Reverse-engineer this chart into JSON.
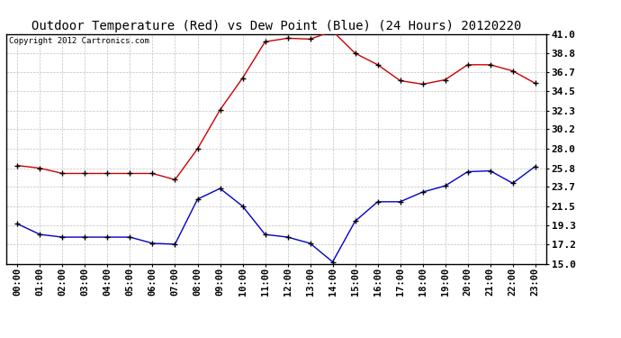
{
  "title": "Outdoor Temperature (Red) vs Dew Point (Blue) (24 Hours) 20120220",
  "copyright_text": "Copyright 2012 Cartronics.com",
  "x_labels": [
    "00:00",
    "01:00",
    "02:00",
    "03:00",
    "04:00",
    "05:00",
    "06:00",
    "07:00",
    "08:00",
    "09:00",
    "10:00",
    "11:00",
    "12:00",
    "13:00",
    "14:00",
    "15:00",
    "16:00",
    "17:00",
    "18:00",
    "19:00",
    "20:00",
    "21:00",
    "22:00",
    "23:00"
  ],
  "temp_red": [
    26.1,
    25.8,
    25.2,
    25.2,
    25.2,
    25.2,
    25.2,
    24.5,
    28.0,
    32.4,
    36.0,
    40.1,
    40.5,
    40.4,
    41.3,
    38.8,
    37.5,
    35.7,
    35.3,
    35.8,
    37.5,
    37.5,
    36.8,
    35.4
  ],
  "dew_blue": [
    19.5,
    18.3,
    18.0,
    18.0,
    18.0,
    18.0,
    17.3,
    17.2,
    22.3,
    23.5,
    21.5,
    18.3,
    18.0,
    17.3,
    15.2,
    19.8,
    22.0,
    22.0,
    23.1,
    23.8,
    25.4,
    25.5,
    24.1,
    26.0
  ],
  "ylim": [
    15.0,
    41.0
  ],
  "yticks": [
    15.0,
    17.2,
    19.3,
    21.5,
    23.7,
    25.8,
    28.0,
    30.2,
    32.3,
    34.5,
    36.7,
    38.8,
    41.0
  ],
  "red_color": "#cc0000",
  "blue_color": "#0000cc",
  "grid_color": "#c0c0c0",
  "bg_color": "#ffffff",
  "title_fontsize": 10,
  "copyright_fontsize": 6.5,
  "tick_fontsize": 7.5,
  "ytick_fontsize": 8
}
